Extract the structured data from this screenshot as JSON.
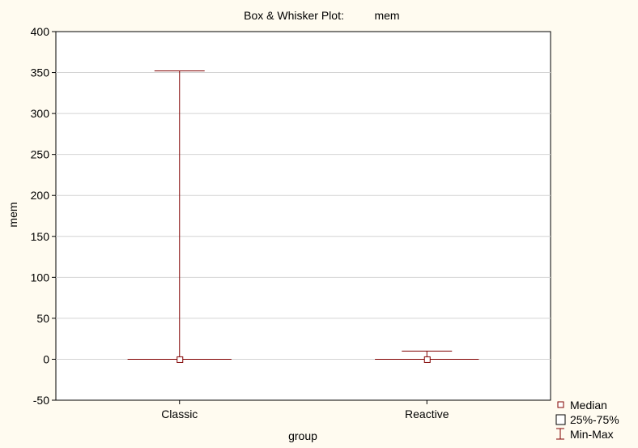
{
  "chart_data": {
    "type": "box",
    "title": "Box & Whisker Plot:",
    "title_variable": "mem",
    "xlabel": "group",
    "ylabel": "mem",
    "ylim": [
      -50,
      400
    ],
    "yticks": [
      400,
      350,
      300,
      250,
      200,
      150,
      100,
      50,
      0,
      -50
    ],
    "grid": true,
    "legend_position": "bottom-right",
    "categories": [
      "Classic",
      "Reactive"
    ],
    "boxes": [
      {
        "category": "Classic",
        "min": 0,
        "q1": 0,
        "median": 0,
        "q3": 0,
        "max": 352
      },
      {
        "category": "Reactive",
        "min": 0,
        "q1": 0,
        "median": 0,
        "q3": 0,
        "max": 10
      }
    ],
    "legend": {
      "median": "Median",
      "box": "25%-75%",
      "whisker": "Min-Max"
    },
    "colors": {
      "background": "#fffbf0",
      "plot_area": "#ffffff",
      "series": "#800000",
      "grid": "#d4d4d4"
    }
  }
}
